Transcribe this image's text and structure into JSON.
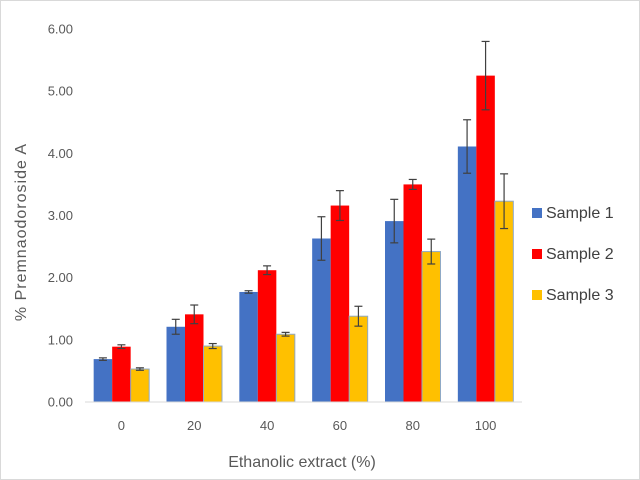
{
  "chart_data": {
    "type": "bar",
    "title": "",
    "xlabel": "Ethanolic extract (%)",
    "ylabel": "% Premnaodoroside A",
    "categories": [
      "0",
      "20",
      "40",
      "60",
      "80",
      "100"
    ],
    "ylim": [
      0,
      6
    ],
    "yticks": [
      "0.00",
      "1.00",
      "2.00",
      "3.00",
      "4.00",
      "5.00",
      "6.00"
    ],
    "grid": false,
    "legend_position": "right",
    "series": [
      {
        "name": "Sample 1",
        "color": "#4472C4",
        "values": [
          0.69,
          1.21,
          1.77,
          2.63,
          2.91,
          4.11
        ],
        "errors": [
          0.02,
          0.12,
          0.02,
          0.35,
          0.35,
          0.43
        ]
      },
      {
        "name": "Sample 2",
        "color": "#FF0000",
        "values": [
          0.89,
          1.41,
          2.12,
          3.16,
          3.5,
          5.25
        ],
        "errors": [
          0.03,
          0.15,
          0.07,
          0.24,
          0.08,
          0.55
        ]
      },
      {
        "name": "Sample 3",
        "color": "#FFC000",
        "values": [
          0.53,
          0.9,
          1.09,
          1.38,
          2.42,
          3.23
        ],
        "errors": [
          0.02,
          0.04,
          0.03,
          0.16,
          0.2,
          0.44
        ]
      }
    ]
  }
}
